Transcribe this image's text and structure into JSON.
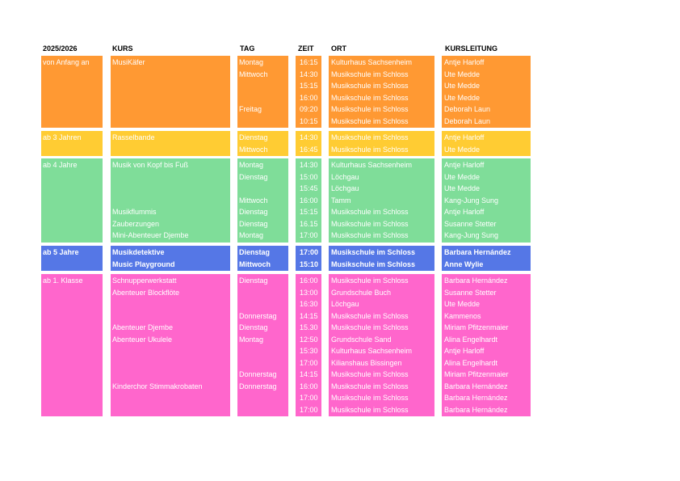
{
  "headers": {
    "year": "2025/2026",
    "course": "KURS",
    "day": "TAG",
    "time": "ZEIT",
    "place": "ORT",
    "teacher": "KURSLEITUNG"
  },
  "groups": [
    {
      "id": "anfang",
      "color": "#FF9933",
      "age": "von Anfang an",
      "bold_text": false,
      "rows": [
        {
          "course": "MusiKäfer",
          "day": "Montag",
          "time": "16:15",
          "place": "Kulturhaus Sachsenheim",
          "teacher": "Antje Harloff"
        },
        {
          "course": "",
          "day": "Mittwoch",
          "time": "14:30",
          "place": "Musikschule im Schloss",
          "teacher": "Ute Medde"
        },
        {
          "course": "",
          "day": "",
          "time": "15:15",
          "place": "Musikschule im Schloss",
          "teacher": "Ute Medde"
        },
        {
          "course": "",
          "day": "",
          "time": "16:00",
          "place": "Musikschule im Schloss",
          "teacher": "Ute Medde"
        },
        {
          "course": "",
          "day": "Freitag",
          "time": "09:20",
          "place": "Musikschule im Schloss",
          "teacher": "Deborah Laun"
        },
        {
          "course": "",
          "day": "",
          "time": "10:15",
          "place": "Musikschule im Schloss",
          "teacher": "Deborah Laun"
        }
      ]
    },
    {
      "id": "ab3",
      "color": "#FFCC33",
      "age": "ab 3 Jahren",
      "bold_text": false,
      "rows": [
        {
          "course": "Rasselbande",
          "day": "Dienstag",
          "time": "14:30",
          "place": "Musikschule im Schloss",
          "teacher": "Antje Harloff"
        },
        {
          "course": "",
          "day": "Mittwoch",
          "time": "16:45",
          "place": "Musikschule im Schloss",
          "teacher": "Ute Medde"
        }
      ]
    },
    {
      "id": "ab4",
      "color": "#7FDD99",
      "age": "ab 4 Jahre",
      "bold_text": false,
      "rows": [
        {
          "course": "Musik von Kopf bis Fuß",
          "day": "Montag",
          "time": "14:30",
          "place": "Kulturhaus Sachsenheim",
          "teacher": "Antje Harloff"
        },
        {
          "course": "",
          "day": "Dienstag",
          "time": "15:00",
          "place": "Löchgau",
          "teacher": "Ute Medde"
        },
        {
          "course": "",
          "day": "",
          "time": "15:45",
          "place": "Löchgau",
          "teacher": "Ute Medde"
        },
        {
          "course": "",
          "day": "Mittwoch",
          "time": "16:00",
          "place": "Tamm",
          "teacher": "Kang-Jung Sung"
        },
        {
          "course": "Musikflummis",
          "day": "Dienstag",
          "time": "15:15",
          "place": "Musikschule im Schloss",
          "teacher": "Antje Harloff"
        },
        {
          "course": "Zauberzungen",
          "day": "Dienstag",
          "time": "16.15",
          "place": "Musikschule im Schloss",
          "teacher": "Susanne Stetter"
        },
        {
          "course": "Mini-Abenteuer Djembe",
          "day": "Montag",
          "time": "17:00",
          "place": "Musikschule im Schloss",
          "teacher": "Kang-Jung Sung"
        }
      ]
    },
    {
      "id": "ab5",
      "color": "#5577E6",
      "age": "ab 5 Jahre",
      "bold_text": true,
      "rows": [
        {
          "course": "Musikdetektive",
          "day": "Dienstag",
          "time": "17:00",
          "place": "Musikschule im Schloss",
          "teacher": "Barbara Hernández"
        },
        {
          "course": "Music Playground",
          "day": "Mittwoch",
          "time": "15:10",
          "place": "Musikschule im Schloss",
          "teacher": "Anne Wylie"
        }
      ]
    },
    {
      "id": "klasse1",
      "color": "#FF66CC",
      "age": "ab 1. Klasse",
      "bold_text": false,
      "rows": [
        {
          "course": "Schnupperwerkstatt",
          "day": "Dienstag",
          "time": "16:00",
          "place": "Musikschule im Schloss",
          "teacher": "Barbara Hernández"
        },
        {
          "course": "Abenteuer Blockflöte",
          "day": "",
          "time": "13:00",
          "place": "Grundschule Buch",
          "teacher": "Susanne Stetter"
        },
        {
          "course": "",
          "day": "",
          "time": "16:30",
          "place": "Löchgau",
          "teacher": "Ute Medde"
        },
        {
          "course": "",
          "day": "Donnerstag",
          "time": "14:15",
          "place": "Musikschule im Schloss",
          "teacher": "Kammenos"
        },
        {
          "course": "Abenteuer Djembe",
          "day": "Dienstag",
          "time": "15.30",
          "place": "Musikschule im Schloss",
          "teacher": "Miriam Pfitzenmaier"
        },
        {
          "course": "Abenteuer Ukulele",
          "day": "Montag",
          "time": "12:50",
          "place": "Grundschule Sand",
          "teacher": "Alina Engelhardt"
        },
        {
          "course": "",
          "day": "",
          "time": "15:30",
          "place": "Kulturhaus Sachsenheim",
          "teacher": "Antje Harloff"
        },
        {
          "course": "",
          "day": "",
          "time": "17:00",
          "place": "Kilianshaus Bissingen",
          "teacher": "Alina Engelhardt"
        },
        {
          "course": "",
          "day": "Donnerstag",
          "time": "14:15",
          "place": "Musikschule im Schloss",
          "teacher": "Miriam Pfitzenmaier"
        },
        {
          "course": "Kinderchor Stimmakrobaten",
          "day": "Donnerstag",
          "time": "16:00",
          "place": "Musikschule im Schloss",
          "teacher": "Barbara Hernández"
        },
        {
          "course": "",
          "day": "",
          "time": "17:00",
          "place": "Musikschule im Schloss",
          "teacher": "Barbara Hernández"
        },
        {
          "course": "",
          "day": "",
          "time": "17:00",
          "place": "Musikschule im Schloss",
          "teacher": "Barbara Hernández"
        }
      ]
    }
  ]
}
